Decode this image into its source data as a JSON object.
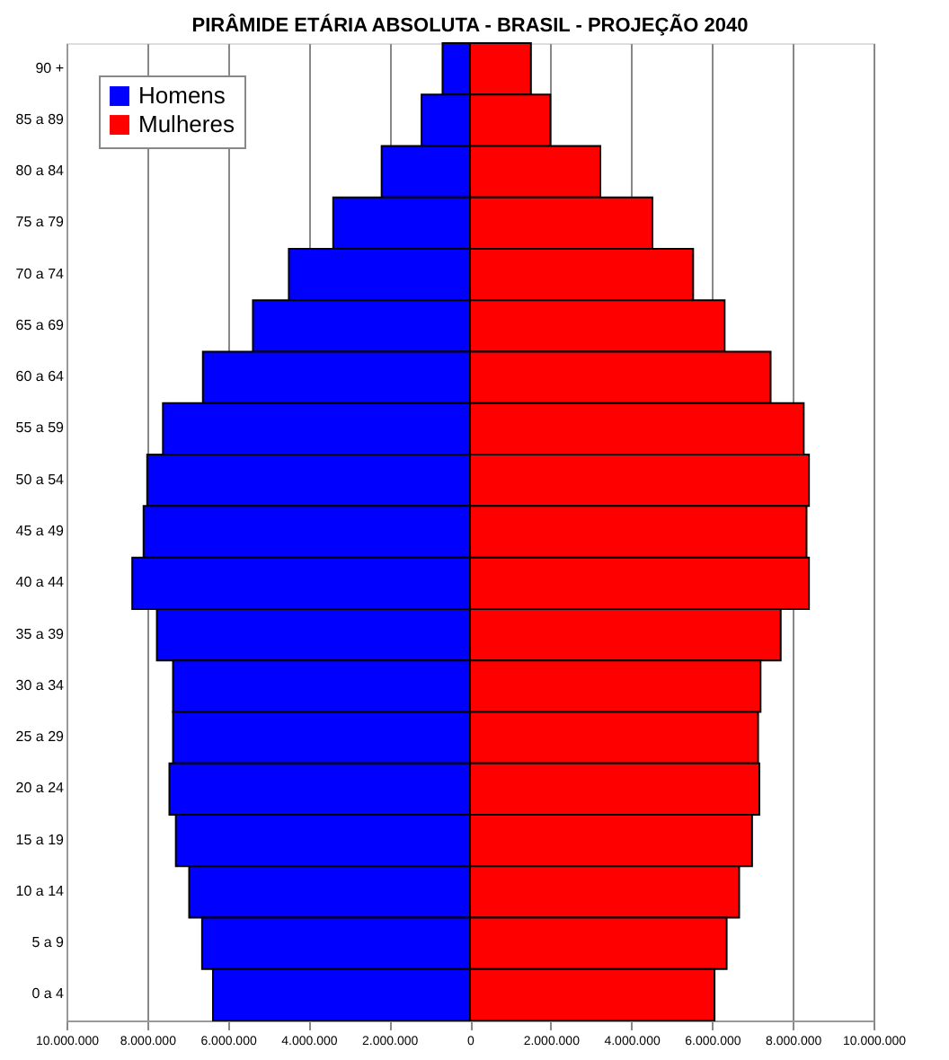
{
  "chart_data": {
    "type": "bar",
    "orientation": "horizontal",
    "title": "PIRÂMIDE ETÁRIA ABSOLUTA - BRASIL - PROJEÇÃO 2040",
    "categories": [
      "90 +",
      "85 a 89",
      "80 a 84",
      "75 a 79",
      "70 a 74",
      "65 a 69",
      "60 a 64",
      "55 a 59",
      "50 a 54",
      "45 a 49",
      "40 a 44",
      "35 a 39",
      "30 a 34",
      "25 a 29",
      "20 a 24",
      "15 a 19",
      "10 a 14",
      "5 a 9",
      "0 a 4"
    ],
    "series": [
      {
        "name": "Homens",
        "color": "#0000ff",
        "values": [
          -680000,
          -1200000,
          -2190000,
          -3390000,
          -4490000,
          -5380000,
          -6620000,
          -7610000,
          -8000000,
          -8090000,
          -8370000,
          -7760000,
          -7360000,
          -7360000,
          -7450000,
          -7290000,
          -6960000,
          -6640000,
          -6370000
        ]
      },
      {
        "name": "Mulheres",
        "color": "#ff0000",
        "values": [
          1510000,
          1990000,
          3230000,
          4520000,
          5530000,
          6310000,
          7450000,
          8270000,
          8400000,
          8340000,
          8400000,
          7700000,
          7200000,
          7140000,
          7170000,
          6990000,
          6670000,
          6360000,
          6060000
        ]
      }
    ],
    "xlim": [
      -10000000,
      10000000
    ],
    "xticks": [
      {
        "value": -10000000,
        "label": "10.000.000"
      },
      {
        "value": -8000000,
        "label": "8.000.000"
      },
      {
        "value": -6000000,
        "label": "6.000.000"
      },
      {
        "value": -4000000,
        "label": "4.000.000"
      },
      {
        "value": -2000000,
        "label": "2.000.000"
      },
      0,
      {
        "value": 2000000,
        "label": "2.000.000"
      },
      {
        "value": 4000000,
        "label": "4.000.000"
      },
      {
        "value": 6000000,
        "label": "6.000.000"
      },
      {
        "value": 8000000,
        "label": "8.000.000"
      },
      {
        "value": 10000000,
        "label": "10.000.000"
      }
    ],
    "grid": "x",
    "legend": "top left",
    "stacked": true
  }
}
